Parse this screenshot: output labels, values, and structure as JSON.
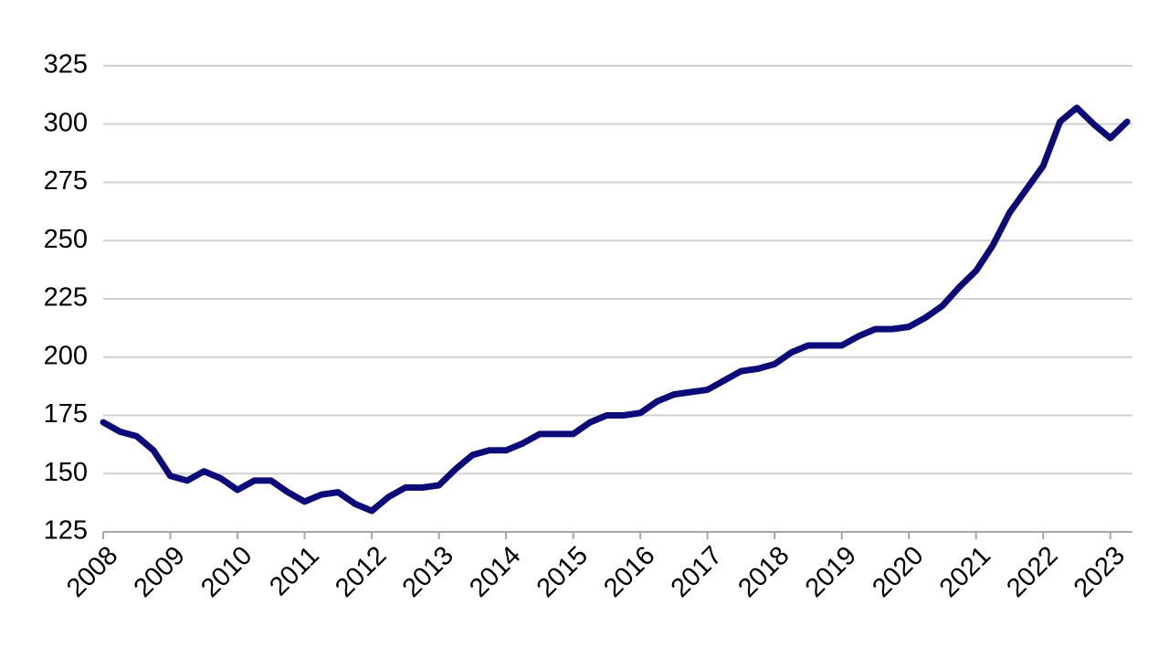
{
  "chart_data": {
    "type": "line",
    "x": [
      2008,
      2008.25,
      2008.5,
      2008.75,
      2009,
      2009.25,
      2009.5,
      2009.75,
      2010,
      2010.25,
      2010.5,
      2010.75,
      2011,
      2011.25,
      2011.5,
      2011.75,
      2012,
      2012.25,
      2012.5,
      2012.75,
      2013,
      2013.25,
      2013.5,
      2013.75,
      2014,
      2014.25,
      2014.5,
      2014.75,
      2015,
      2015.25,
      2015.5,
      2015.75,
      2016,
      2016.25,
      2016.5,
      2016.75,
      2017,
      2017.25,
      2017.5,
      2017.75,
      2018,
      2018.25,
      2018.5,
      2018.75,
      2019,
      2019.25,
      2019.5,
      2019.75,
      2020,
      2020.25,
      2020.5,
      2020.75,
      2021,
      2021.25,
      2021.5,
      2021.75,
      2022,
      2022.25,
      2022.5,
      2022.75,
      2023,
      2023.25
    ],
    "series": [
      {
        "color": "#0b0b7a",
        "values": [
          172,
          168,
          166,
          160,
          149,
          147,
          151,
          148,
          143,
          147,
          147,
          142,
          138,
          141,
          142,
          137,
          134,
          140,
          144,
          144,
          145,
          152,
          158,
          160,
          160,
          163,
          167,
          167,
          167,
          172,
          175,
          175,
          176,
          181,
          184,
          185,
          186,
          190,
          194,
          195,
          197,
          202,
          205,
          205,
          205,
          209,
          212,
          212,
          213,
          217,
          222,
          230,
          237,
          248,
          262,
          272,
          282,
          301,
          307,
          300,
          294,
          301
        ]
      }
    ],
    "xlim": [
      2008,
      2023.33
    ],
    "xticks": [
      2008,
      2009,
      2010,
      2011,
      2012,
      2013,
      2014,
      2015,
      2016,
      2017,
      2018,
      2019,
      2020,
      2021,
      2022,
      2023
    ],
    "ylim": [
      125,
      325
    ],
    "yticks": [
      125,
      150,
      175,
      200,
      225,
      250,
      275,
      300,
      325
    ],
    "grid": true
  }
}
